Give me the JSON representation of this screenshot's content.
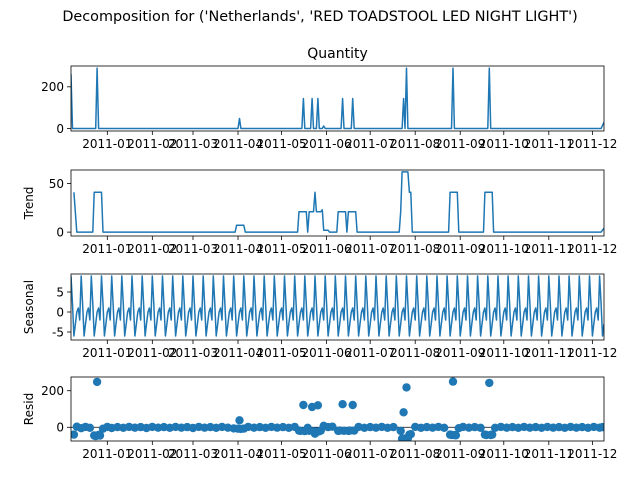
{
  "figure": {
    "suptitle": "Decomposition for ('Netherlands', 'RED TOADSTOOL LED NIGHT LIGHT')"
  },
  "colors": {
    "line": "#1f77b4",
    "axis": "#000000",
    "background": "#ffffff"
  },
  "chart_data": [
    {
      "type": "line",
      "title": "Quantity",
      "ylabel": "",
      "xlim": [
        "2010-12-07",
        "2011-12-09"
      ],
      "ylim": [
        -12,
        300
      ],
      "x_ticks": [
        "2011-01",
        "2011-02",
        "2011-03",
        "2011-04",
        "2011-05",
        "2011-06",
        "2011-07",
        "2011-08",
        "2011-09",
        "2011-10",
        "2011-11",
        "2011-12"
      ],
      "y_ticks": [
        0,
        200
      ],
      "points": [
        [
          "2010-12-07",
          260
        ],
        [
          "2010-12-08",
          0
        ],
        [
          "2010-12-24",
          0
        ],
        [
          "2010-12-25",
          290
        ],
        [
          "2010-12-26",
          0
        ],
        [
          "2011-04-01",
          0
        ],
        [
          "2011-04-02",
          48
        ],
        [
          "2011-04-03",
          0
        ],
        [
          "2011-05-15",
          0
        ],
        [
          "2011-05-16",
          144
        ],
        [
          "2011-05-17",
          0
        ],
        [
          "2011-05-21",
          0
        ],
        [
          "2011-05-22",
          144
        ],
        [
          "2011-05-23",
          0
        ],
        [
          "2011-05-25",
          0
        ],
        [
          "2011-05-26",
          144
        ],
        [
          "2011-05-27",
          0
        ],
        [
          "2011-05-29",
          0
        ],
        [
          "2011-05-30",
          12
        ],
        [
          "2011-05-31",
          0
        ],
        [
          "2011-06-11",
          0
        ],
        [
          "2011-06-12",
          144
        ],
        [
          "2011-06-13",
          0
        ],
        [
          "2011-06-18",
          0
        ],
        [
          "2011-06-19",
          144
        ],
        [
          "2011-06-20",
          0
        ],
        [
          "2011-07-23",
          0
        ],
        [
          "2011-07-24",
          144
        ],
        [
          "2011-07-25",
          0
        ],
        [
          "2011-07-26",
          290
        ],
        [
          "2011-07-27",
          0
        ],
        [
          "2011-08-26",
          0
        ],
        [
          "2011-08-27",
          290
        ],
        [
          "2011-08-28",
          0
        ],
        [
          "2011-09-20",
          0
        ],
        [
          "2011-09-21",
          290
        ],
        [
          "2011-09-22",
          0
        ],
        [
          "2011-12-07",
          0
        ],
        [
          "2011-12-09",
          30
        ]
      ]
    },
    {
      "type": "line",
      "title": "",
      "ylabel": "Trend",
      "xlim": [
        "2010-12-07",
        "2011-12-09"
      ],
      "ylim": [
        -4,
        64
      ],
      "x_ticks": [
        "2011-01",
        "2011-02",
        "2011-03",
        "2011-04",
        "2011-05",
        "2011-06",
        "2011-07",
        "2011-08",
        "2011-09",
        "2011-10",
        "2011-11",
        "2011-12"
      ],
      "y_ticks": [
        0,
        50
      ],
      "points": [
        [
          "2010-12-09",
          41
        ],
        [
          "2010-12-11",
          0
        ],
        [
          "2010-12-22",
          0
        ],
        [
          "2010-12-23",
          41
        ],
        [
          "2010-12-28",
          41
        ],
        [
          "2010-12-29",
          0
        ],
        [
          "2011-03-30",
          0
        ],
        [
          "2011-03-31",
          7
        ],
        [
          "2011-04-05",
          7
        ],
        [
          "2011-04-06",
          0
        ],
        [
          "2011-05-12",
          0
        ],
        [
          "2011-05-13",
          21
        ],
        [
          "2011-05-18",
          21
        ],
        [
          "2011-05-19",
          0
        ],
        [
          "2011-05-20",
          21
        ],
        [
          "2011-05-23",
          21
        ],
        [
          "2011-05-24",
          41
        ],
        [
          "2011-05-25",
          21
        ],
        [
          "2011-05-28",
          21
        ],
        [
          "2011-05-29",
          23
        ],
        [
          "2011-05-30",
          2
        ],
        [
          "2011-06-02",
          2
        ],
        [
          "2011-06-03",
          0
        ],
        [
          "2011-06-08",
          0
        ],
        [
          "2011-06-09",
          21
        ],
        [
          "2011-06-14",
          21
        ],
        [
          "2011-06-15",
          0
        ],
        [
          "2011-06-16",
          21
        ],
        [
          "2011-06-21",
          21
        ],
        [
          "2011-06-22",
          0
        ],
        [
          "2011-07-21",
          0
        ],
        [
          "2011-07-22",
          21
        ],
        [
          "2011-07-23",
          62
        ],
        [
          "2011-07-27",
          62
        ],
        [
          "2011-07-28",
          41
        ],
        [
          "2011-07-29",
          41
        ],
        [
          "2011-07-30",
          0
        ],
        [
          "2011-08-24",
          0
        ],
        [
          "2011-08-25",
          41
        ],
        [
          "2011-08-30",
          41
        ],
        [
          "2011-08-31",
          0
        ],
        [
          "2011-09-17",
          0
        ],
        [
          "2011-09-18",
          41
        ],
        [
          "2011-09-23",
          41
        ],
        [
          "2011-09-24",
          0
        ],
        [
          "2011-12-07",
          0
        ],
        [
          "2011-12-09",
          4
        ]
      ]
    },
    {
      "type": "line",
      "title": "",
      "ylabel": "Seasonal",
      "xlim": [
        "2010-12-07",
        "2011-12-09"
      ],
      "ylim": [
        -7,
        9.5
      ],
      "x_ticks": [
        "2011-01",
        "2011-02",
        "2011-03",
        "2011-04",
        "2011-05",
        "2011-06",
        "2011-07",
        "2011-08",
        "2011-09",
        "2011-10",
        "2011-11",
        "2011-12"
      ],
      "y_ticks": [
        -5,
        0,
        5
      ],
      "period_days": 7,
      "weekly_pattern": [
        9,
        2,
        -6,
        -3,
        0,
        1,
        -2
      ],
      "start": "2010-12-07",
      "end": "2011-12-09"
    },
    {
      "type": "scatter",
      "title": "",
      "ylabel": "Resid",
      "xlim": [
        "2010-12-07",
        "2011-12-09"
      ],
      "ylim": [
        -75,
        275
      ],
      "x_ticks": [
        "2011-01",
        "2011-02",
        "2011-03",
        "2011-04",
        "2011-05",
        "2011-06",
        "2011-07",
        "2011-08",
        "2011-09",
        "2011-10",
        "2011-11",
        "2011-12"
      ],
      "y_ticks": [
        0,
        200
      ],
      "baseline": 0,
      "points": [
        [
          "2010-12-09",
          -40
        ],
        [
          "2010-12-11",
          3
        ],
        [
          "2010-12-14",
          -5
        ],
        [
          "2010-12-17",
          2
        ],
        [
          "2010-12-20",
          -3
        ],
        [
          "2010-12-23",
          -45
        ],
        [
          "2010-12-24",
          -48
        ],
        [
          "2010-12-25",
          248
        ],
        [
          "2010-12-26",
          -42
        ],
        [
          "2010-12-27",
          -45
        ],
        [
          "2010-12-29",
          -8
        ],
        [
          "2011-01-01",
          2
        ],
        [
          "2011-01-04",
          -4
        ],
        [
          "2011-01-08",
          1
        ],
        [
          "2011-01-12",
          -3
        ],
        [
          "2011-01-16",
          2
        ],
        [
          "2011-01-20",
          -2
        ],
        [
          "2011-01-24",
          1
        ],
        [
          "2011-01-28",
          -4
        ],
        [
          "2011-02-01",
          2
        ],
        [
          "2011-02-05",
          -2
        ],
        [
          "2011-02-09",
          1
        ],
        [
          "2011-02-13",
          -3
        ],
        [
          "2011-02-17",
          2
        ],
        [
          "2011-02-21",
          -2
        ],
        [
          "2011-02-25",
          1
        ],
        [
          "2011-03-01",
          -4
        ],
        [
          "2011-03-05",
          2
        ],
        [
          "2011-03-09",
          -2
        ],
        [
          "2011-03-13",
          1
        ],
        [
          "2011-03-17",
          -3
        ],
        [
          "2011-03-21",
          2
        ],
        [
          "2011-03-25",
          -2
        ],
        [
          "2011-03-29",
          -6
        ],
        [
          "2011-04-01",
          -8
        ],
        [
          "2011-04-02",
          38
        ],
        [
          "2011-04-03",
          -9
        ],
        [
          "2011-04-05",
          -7
        ],
        [
          "2011-04-08",
          2
        ],
        [
          "2011-04-12",
          -2
        ],
        [
          "2011-04-16",
          1
        ],
        [
          "2011-04-20",
          -3
        ],
        [
          "2011-04-24",
          2
        ],
        [
          "2011-04-28",
          -2
        ],
        [
          "2011-05-02",
          1
        ],
        [
          "2011-05-06",
          -3
        ],
        [
          "2011-05-10",
          2
        ],
        [
          "2011-05-13",
          -18
        ],
        [
          "2011-05-14",
          -20
        ],
        [
          "2011-05-16",
          122
        ],
        [
          "2011-05-17",
          -21
        ],
        [
          "2011-05-19",
          -3
        ],
        [
          "2011-05-20",
          -19
        ],
        [
          "2011-05-22",
          111
        ],
        [
          "2011-05-23",
          -22
        ],
        [
          "2011-05-24",
          -35
        ],
        [
          "2011-05-25",
          -23
        ],
        [
          "2011-05-26",
          120
        ],
        [
          "2011-05-27",
          -22
        ],
        [
          "2011-05-28",
          -18
        ],
        [
          "2011-05-30",
          8
        ],
        [
          "2011-06-02",
          1
        ],
        [
          "2011-06-05",
          3
        ],
        [
          "2011-06-09",
          -20
        ],
        [
          "2011-06-10",
          -18
        ],
        [
          "2011-06-12",
          126
        ],
        [
          "2011-06-13",
          -19
        ],
        [
          "2011-06-16",
          -20
        ],
        [
          "2011-06-17",
          -18
        ],
        [
          "2011-06-19",
          122
        ],
        [
          "2011-06-20",
          -18
        ],
        [
          "2011-06-23",
          2
        ],
        [
          "2011-06-27",
          -3
        ],
        [
          "2011-07-01",
          1
        ],
        [
          "2011-07-05",
          -2
        ],
        [
          "2011-07-09",
          2
        ],
        [
          "2011-07-13",
          -3
        ],
        [
          "2011-07-17",
          1
        ],
        [
          "2011-07-22",
          -20
        ],
        [
          "2011-07-23",
          -62
        ],
        [
          "2011-07-24",
          82
        ],
        [
          "2011-07-25",
          -61
        ],
        [
          "2011-07-26",
          218
        ],
        [
          "2011-07-27",
          -60
        ],
        [
          "2011-07-28",
          -40
        ],
        [
          "2011-07-29",
          -38
        ],
        [
          "2011-08-01",
          2
        ],
        [
          "2011-08-05",
          -3
        ],
        [
          "2011-08-09",
          1
        ],
        [
          "2011-08-13",
          -2
        ],
        [
          "2011-08-17",
          2
        ],
        [
          "2011-08-21",
          -3
        ],
        [
          "2011-08-25",
          -40
        ],
        [
          "2011-08-26",
          -42
        ],
        [
          "2011-08-27",
          250
        ],
        [
          "2011-08-28",
          -43
        ],
        [
          "2011-08-29",
          -44
        ],
        [
          "2011-08-31",
          -5
        ],
        [
          "2011-09-03",
          2
        ],
        [
          "2011-09-07",
          -2
        ],
        [
          "2011-09-11",
          1
        ],
        [
          "2011-09-15",
          -3
        ],
        [
          "2011-09-18",
          -40
        ],
        [
          "2011-09-19",
          -42
        ],
        [
          "2011-09-21",
          243
        ],
        [
          "2011-09-22",
          -42
        ],
        [
          "2011-09-23",
          -40
        ],
        [
          "2011-09-25",
          -3
        ],
        [
          "2011-09-29",
          2
        ],
        [
          "2011-10-03",
          -2
        ],
        [
          "2011-10-07",
          1
        ],
        [
          "2011-10-11",
          -3
        ],
        [
          "2011-10-15",
          2
        ],
        [
          "2011-10-19",
          -2
        ],
        [
          "2011-10-23",
          1
        ],
        [
          "2011-10-27",
          -3
        ],
        [
          "2011-10-31",
          2
        ],
        [
          "2011-11-04",
          -2
        ],
        [
          "2011-11-08",
          1
        ],
        [
          "2011-11-12",
          -3
        ],
        [
          "2011-11-16",
          2
        ],
        [
          "2011-11-20",
          -2
        ],
        [
          "2011-11-24",
          1
        ],
        [
          "2011-11-28",
          -3
        ],
        [
          "2011-12-02",
          2
        ],
        [
          "2011-12-06",
          -2
        ],
        [
          "2011-12-08",
          1
        ]
      ]
    }
  ]
}
